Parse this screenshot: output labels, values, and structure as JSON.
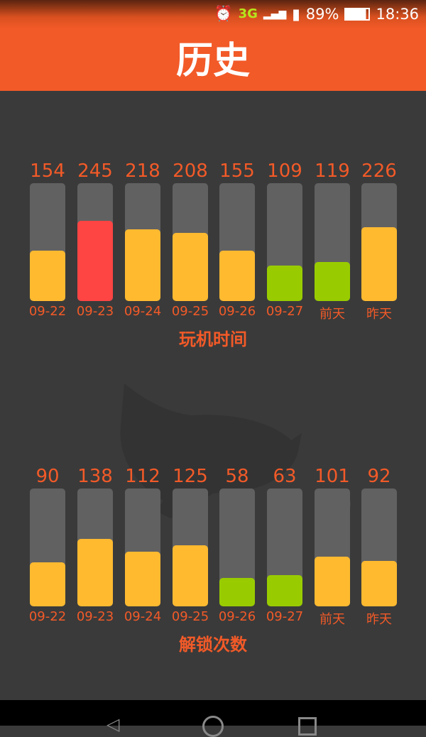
{
  "status_bar": {
    "battery": "89%",
    "time": "18:36",
    "network": "3G",
    "icons": [
      "alarm-icon",
      "3g-icon",
      "signal-icon",
      "sim-alert-icon",
      "battery-icon"
    ]
  },
  "header": {
    "title": "历史"
  },
  "colors": {
    "header": "#f25a28",
    "normal": "#ffba30",
    "high": "#ff4444",
    "low": "#99cc00",
    "track": "#616161"
  },
  "chart_data": [
    {
      "type": "bar",
      "title": "玩机时间",
      "categories": [
        "09-22",
        "09-23",
        "09-24",
        "09-25",
        "09-26",
        "09-27",
        "前天",
        "昨天"
      ],
      "values": [
        154,
        245,
        218,
        208,
        155,
        109,
        119,
        226
      ],
      "ylim": [
        0,
        360
      ],
      "bar_colors": [
        "#ffba30",
        "#ff4444",
        "#ffba30",
        "#ffba30",
        "#ffba30",
        "#99cc00",
        "#99cc00",
        "#ffba30"
      ]
    },
    {
      "type": "bar",
      "title": "解锁次数",
      "categories": [
        "09-22",
        "09-23",
        "09-24",
        "09-25",
        "09-26",
        "09-27",
        "前天",
        "昨天"
      ],
      "values": [
        90,
        138,
        112,
        125,
        58,
        63,
        101,
        92
      ],
      "ylim": [
        0,
        240
      ],
      "bar_colors": [
        "#ffba30",
        "#ffba30",
        "#ffba30",
        "#ffba30",
        "#99cc00",
        "#99cc00",
        "#ffba30",
        "#ffba30"
      ]
    }
  ]
}
